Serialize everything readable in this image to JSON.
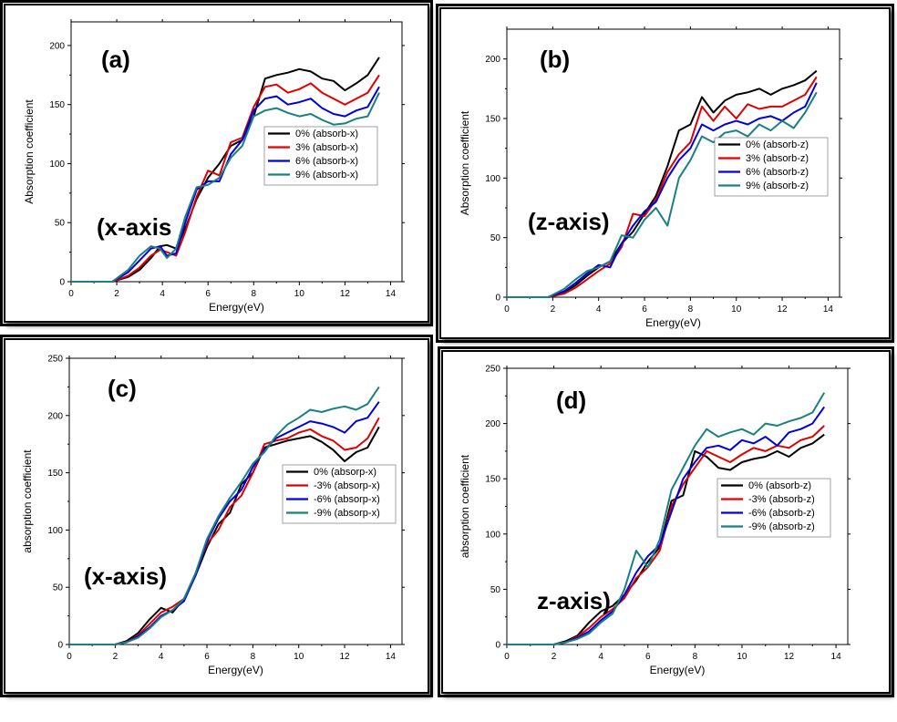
{
  "chart_data": [
    {
      "type": "line",
      "panel_label": "(a)",
      "annotation": "(x-axis",
      "xlabel": "Energy(eV)",
      "ylabel": "Absorption coefficient",
      "xlim": [
        0,
        14.5
      ],
      "ylim": [
        0,
        220
      ],
      "xticks": [
        0,
        2,
        4,
        6,
        8,
        10,
        12,
        14
      ],
      "yticks": [
        0,
        50,
        100,
        150,
        200
      ],
      "series": [
        {
          "name": "0% (absorb-x)",
          "color": "#000000",
          "x": [
            0,
            1,
            1.8,
            2.5,
            3,
            3.5,
            3.9,
            4.2,
            4.6,
            5,
            5.5,
            6,
            6.5,
            7,
            7.5,
            8,
            8.5,
            9,
            9.5,
            10,
            10.5,
            11,
            11.5,
            12,
            12.5,
            13,
            13.5
          ],
          "y": [
            0,
            0,
            0,
            4,
            10,
            20,
            30,
            31,
            28,
            45,
            70,
            88,
            100,
            115,
            120,
            140,
            172,
            175,
            177,
            180,
            178,
            172,
            170,
            162,
            168,
            175,
            190
          ]
        },
        {
          "name": "3% (absorb-x)",
          "color": "#e00000",
          "x": [
            0,
            1,
            1.8,
            2.5,
            3,
            3.5,
            3.9,
            4.2,
            4.6,
            5,
            5.5,
            6,
            6.5,
            7,
            7.5,
            8,
            8.5,
            9,
            9.5,
            10,
            10.5,
            11,
            11.5,
            12,
            12.5,
            13,
            13.5
          ],
          "y": [
            0,
            0,
            0,
            5,
            12,
            22,
            27,
            25,
            22,
            42,
            72,
            94,
            90,
            118,
            122,
            148,
            165,
            167,
            160,
            163,
            168,
            160,
            155,
            150,
            155,
            160,
            175
          ]
        },
        {
          "name": "6% (absorb-x)",
          "color": "#0000e0",
          "x": [
            0,
            1,
            1.8,
            2.5,
            3,
            3.5,
            3.9,
            4.2,
            4.6,
            5,
            5.5,
            6,
            6.5,
            7,
            7.5,
            8,
            8.5,
            9,
            9.5,
            10,
            10.5,
            11,
            11.5,
            12,
            12.5,
            13,
            13.5
          ],
          "y": [
            0,
            0,
            0,
            8,
            18,
            28,
            30,
            22,
            24,
            50,
            78,
            85,
            85,
            108,
            120,
            145,
            155,
            157,
            150,
            152,
            155,
            147,
            142,
            140,
            145,
            148,
            165
          ]
        },
        {
          "name": "9% (absorb-x)",
          "color": "#1a8080",
          "x": [
            0,
            1,
            1.8,
            2.5,
            3,
            3.5,
            3.9,
            4.2,
            4.6,
            5,
            5.5,
            6,
            6.5,
            7,
            7.5,
            8,
            8.5,
            9,
            9.5,
            10,
            10.5,
            11,
            11.5,
            12,
            12.5,
            13,
            13.5
          ],
          "y": [
            0,
            0,
            0,
            10,
            22,
            30,
            28,
            20,
            28,
            55,
            80,
            82,
            88,
            105,
            115,
            140,
            145,
            147,
            143,
            140,
            142,
            137,
            133,
            134,
            138,
            140,
            160
          ]
        }
      ]
    },
    {
      "type": "line",
      "panel_label": "(b)",
      "annotation": "(z-axis)",
      "xlabel": "Energy(eV)",
      "ylabel": "Absorption coefficient",
      "xlim": [
        0,
        14.5
      ],
      "ylim": [
        0,
        225
      ],
      "xticks": [
        0,
        2,
        4,
        6,
        8,
        10,
        12,
        14
      ],
      "yticks": [
        0,
        50,
        100,
        150,
        200
      ],
      "series": [
        {
          "name": "0% (absorb-z)",
          "color": "#000000",
          "x": [
            0,
            1,
            1.8,
            2.5,
            3,
            3.5,
            4,
            4.5,
            5,
            5.5,
            6,
            6.5,
            7,
            7.5,
            8,
            8.5,
            9,
            9.5,
            10,
            10.5,
            11,
            11.5,
            12,
            12.5,
            13,
            13.5
          ],
          "y": [
            0,
            0,
            0,
            4,
            10,
            18,
            25,
            30,
            45,
            55,
            70,
            85,
            110,
            140,
            145,
            168,
            155,
            165,
            170,
            172,
            175,
            170,
            175,
            178,
            182,
            190
          ]
        },
        {
          "name": "3% (absorb-z)",
          "color": "#e00000",
          "x": [
            0,
            1,
            1.8,
            2.5,
            3,
            3.5,
            4,
            4.5,
            5,
            5.5,
            6,
            6.5,
            7,
            7.5,
            8,
            8.5,
            9,
            9.5,
            10,
            10.5,
            11,
            11.5,
            12,
            12.5,
            13,
            13.5
          ],
          "y": [
            0,
            0,
            0,
            3,
            8,
            15,
            22,
            28,
            42,
            70,
            68,
            82,
            105,
            120,
            130,
            160,
            148,
            160,
            150,
            162,
            158,
            160,
            160,
            165,
            170,
            185
          ]
        },
        {
          "name": "6% (absorb-z)",
          "color": "#0000e0",
          "x": [
            0,
            1,
            1.8,
            2.5,
            3,
            3.5,
            4,
            4.5,
            5,
            5.5,
            6,
            6.5,
            7,
            7.5,
            8,
            8.5,
            9,
            9.5,
            10,
            10.5,
            11,
            11.5,
            12,
            12.5,
            13,
            13.5
          ],
          "y": [
            0,
            0,
            0,
            5,
            12,
            20,
            27,
            25,
            45,
            60,
            72,
            80,
            100,
            115,
            125,
            145,
            140,
            145,
            148,
            145,
            150,
            152,
            148,
            155,
            160,
            180
          ]
        },
        {
          "name": "9% (absorb-z)",
          "color": "#1a8080",
          "x": [
            0,
            1,
            1.8,
            2.5,
            3,
            3.5,
            4,
            4.5,
            5,
            5.5,
            6,
            6.5,
            7,
            7.5,
            8,
            8.5,
            9,
            9.5,
            10,
            10.5,
            11,
            11.5,
            12,
            12.5,
            13,
            13.5
          ],
          "y": [
            0,
            0,
            0,
            7,
            15,
            22,
            25,
            30,
            52,
            50,
            65,
            75,
            60,
            100,
            115,
            135,
            130,
            138,
            140,
            135,
            145,
            140,
            148,
            142,
            155,
            172
          ]
        }
      ]
    },
    {
      "type": "line",
      "panel_label": "(c)",
      "annotation": "(x-axis)",
      "xlabel": "Energy(eV)",
      "ylabel": "absorption coefficient",
      "xlim": [
        0,
        14.5
      ],
      "ylim": [
        0,
        250
      ],
      "xticks": [
        0,
        2,
        4,
        6,
        8,
        10,
        12,
        14
      ],
      "yticks": [
        0,
        50,
        100,
        150,
        200,
        250
      ],
      "series": [
        {
          "name": "0% (absorp-x)",
          "color": "#000000",
          "x": [
            0,
            1,
            2,
            2.5,
            3,
            3.5,
            4,
            4.5,
            5,
            5.5,
            6,
            6.5,
            7,
            7.5,
            8,
            8.5,
            9,
            9.5,
            10,
            10.5,
            11,
            11.5,
            12,
            12.5,
            13,
            13.5
          ],
          "y": [
            0,
            0,
            0,
            3,
            10,
            22,
            32,
            28,
            40,
            60,
            85,
            105,
            115,
            140,
            150,
            172,
            175,
            178,
            180,
            182,
            177,
            170,
            160,
            168,
            172,
            190
          ]
        },
        {
          "name": "-3% (absorp-x)",
          "color": "#e00000",
          "x": [
            0,
            1,
            2,
            2.5,
            3,
            3.5,
            4,
            4.5,
            5,
            5.5,
            6,
            6.5,
            7,
            7.5,
            8,
            8.5,
            9,
            9.5,
            10,
            10.5,
            11,
            11.5,
            12,
            12.5,
            13,
            13.5
          ],
          "y": [
            0,
            0,
            0,
            2,
            8,
            18,
            28,
            33,
            40,
            62,
            88,
            100,
            120,
            130,
            150,
            175,
            178,
            180,
            185,
            188,
            182,
            178,
            170,
            172,
            180,
            198
          ]
        },
        {
          "name": "-6% (absorp-x)",
          "color": "#0000e0",
          "x": [
            0,
            1,
            2,
            2.5,
            3,
            3.5,
            4,
            4.5,
            5,
            5.5,
            6,
            6.5,
            7,
            7.5,
            8,
            8.5,
            9,
            9.5,
            10,
            10.5,
            11,
            11.5,
            12,
            12.5,
            13,
            13.5
          ],
          "y": [
            0,
            0,
            0,
            2,
            7,
            15,
            25,
            30,
            38,
            60,
            90,
            110,
            125,
            135,
            155,
            170,
            180,
            185,
            190,
            195,
            193,
            190,
            185,
            195,
            198,
            212
          ]
        },
        {
          "name": "-9% (absorp-x)",
          "color": "#1a8080",
          "x": [
            0,
            1,
            2,
            2.5,
            3,
            3.5,
            4,
            4.5,
            5,
            5.5,
            6,
            6.5,
            7,
            7.5,
            8,
            8.5,
            9,
            9.5,
            10,
            10.5,
            11,
            11.5,
            12,
            12.5,
            13,
            13.5
          ],
          "y": [
            0,
            0,
            0,
            2,
            6,
            14,
            24,
            30,
            40,
            62,
            92,
            112,
            128,
            142,
            158,
            168,
            182,
            192,
            198,
            205,
            203,
            206,
            208,
            205,
            210,
            225
          ]
        }
      ]
    },
    {
      "type": "line",
      "panel_label": "(d)",
      "annotation": "z-axis)",
      "xlabel": "Energy(eV)",
      "ylabel": "absorption coefficient",
      "xlim": [
        0,
        14.5
      ],
      "ylim": [
        0,
        250
      ],
      "xticks": [
        0,
        2,
        4,
        6,
        8,
        10,
        12,
        14
      ],
      "yticks": [
        0,
        50,
        100,
        150,
        200,
        250
      ],
      "series": [
        {
          "name": "0% (absorb-z)",
          "color": "#000000",
          "x": [
            0,
            1,
            2,
            2.5,
            3,
            3.5,
            4,
            4.5,
            5,
            5.5,
            6,
            6.5,
            7,
            7.5,
            8,
            8.5,
            9,
            9.5,
            10,
            10.5,
            11,
            11.5,
            12,
            12.5,
            13,
            13.5
          ],
          "y": [
            0,
            0,
            0,
            3,
            8,
            20,
            30,
            35,
            45,
            58,
            75,
            88,
            130,
            135,
            175,
            170,
            160,
            158,
            165,
            168,
            170,
            175,
            170,
            178,
            182,
            190
          ]
        },
        {
          "name": "-3% (absorb-z)",
          "color": "#e00000",
          "x": [
            0,
            1,
            2,
            2.5,
            3,
            3.5,
            4,
            4.5,
            5,
            5.5,
            6,
            6.5,
            7,
            7.5,
            8,
            8.5,
            9,
            9.5,
            10,
            10.5,
            11,
            11.5,
            12,
            12.5,
            13,
            13.5
          ],
          "y": [
            0,
            0,
            0,
            2,
            7,
            15,
            25,
            32,
            42,
            60,
            70,
            85,
            125,
            145,
            160,
            175,
            170,
            165,
            172,
            178,
            175,
            180,
            178,
            185,
            188,
            198
          ]
        },
        {
          "name": "-6% (absorb-z)",
          "color": "#0000e0",
          "x": [
            0,
            1,
            2,
            2.5,
            3,
            3.5,
            4,
            4.5,
            5,
            5.5,
            6,
            6.5,
            7,
            7.5,
            8,
            8.5,
            9,
            9.5,
            10,
            10.5,
            11,
            11.5,
            12,
            12.5,
            13,
            13.5
          ],
          "y": [
            0,
            0,
            0,
            2,
            6,
            12,
            22,
            30,
            45,
            65,
            80,
            90,
            120,
            150,
            165,
            178,
            180,
            176,
            185,
            182,
            188,
            180,
            192,
            195,
            200,
            215
          ]
        },
        {
          "name": "-9% (absorb-z)",
          "color": "#1a8080",
          "x": [
            0,
            1,
            2,
            2.5,
            3,
            3.5,
            4,
            4.5,
            5,
            5.5,
            6,
            6.5,
            7,
            7.5,
            8,
            8.5,
            9,
            9.5,
            10,
            10.5,
            11,
            11.5,
            12,
            12.5,
            13,
            13.5
          ],
          "y": [
            0,
            0,
            0,
            2,
            5,
            10,
            20,
            28,
            50,
            85,
            70,
            95,
            140,
            160,
            180,
            195,
            188,
            192,
            195,
            190,
            200,
            198,
            202,
            205,
            210,
            228
          ]
        }
      ]
    }
  ]
}
